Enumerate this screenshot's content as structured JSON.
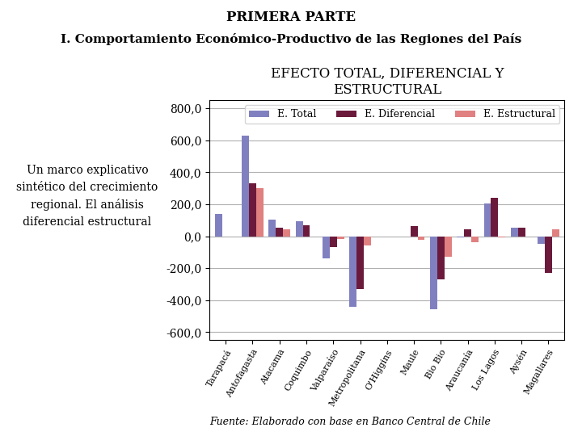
{
  "chart_data": {
    "type": "bar",
    "title": "EFECTO TOTAL, DIFERENCIAL Y\nESTRUCTURAL",
    "annotations": [
      "PRIMERA PARTE",
      "I. Comportamiento Económico-Productivo de las Regiones del País",
      "Un marco explicativo\nsintético del crecimiento\nregional. El análisis\ndiferencial estructural",
      "Fuente: Elaborado con base en Banco Central de Chile"
    ],
    "categories": [
      "Tarapacá",
      "Antofagasta",
      "Atacama",
      "Coquimbo",
      "Valparaíso",
      "Metropolitana",
      "O'Higgins",
      "Maule",
      "Bio Bio",
      "Araucanía",
      "Los Lagos",
      "Aysén",
      "Magallares"
    ],
    "series": [
      {
        "name": "E. Total",
        "color": "#8080c0",
        "values": [
          140,
          630,
          105,
          95,
          -140,
          -440,
          0,
          -5,
          -455,
          -10,
          205,
          55,
          -50
        ]
      },
      {
        "name": "E. Diferencial",
        "color": "#6B1A3C",
        "values": [
          0,
          330,
          55,
          70,
          -70,
          -330,
          0,
          65,
          -270,
          45,
          240,
          55,
          -230
        ]
      },
      {
        "name": "E. Estructural",
        "color": "#E08080",
        "values": [
          0,
          300,
          45,
          0,
          -20,
          -60,
          0,
          -25,
          -130,
          -40,
          -10,
          0,
          45
        ]
      }
    ],
    "ylim": [
      -650,
      850
    ],
    "yticks": [
      {
        "value": -600,
        "label": "-600,0"
      },
      {
        "value": -400,
        "label": "-400,0"
      },
      {
        "value": -200,
        "label": "-200,0"
      },
      {
        "value": 0,
        "label": "0,0"
      },
      {
        "value": 200,
        "label": "200,0"
      },
      {
        "value": 400,
        "label": "400,0"
      },
      {
        "value": 600,
        "label": "600,0"
      },
      {
        "value": 800,
        "label": "800,0"
      }
    ],
    "grid": true,
    "legend": "upper right"
  }
}
